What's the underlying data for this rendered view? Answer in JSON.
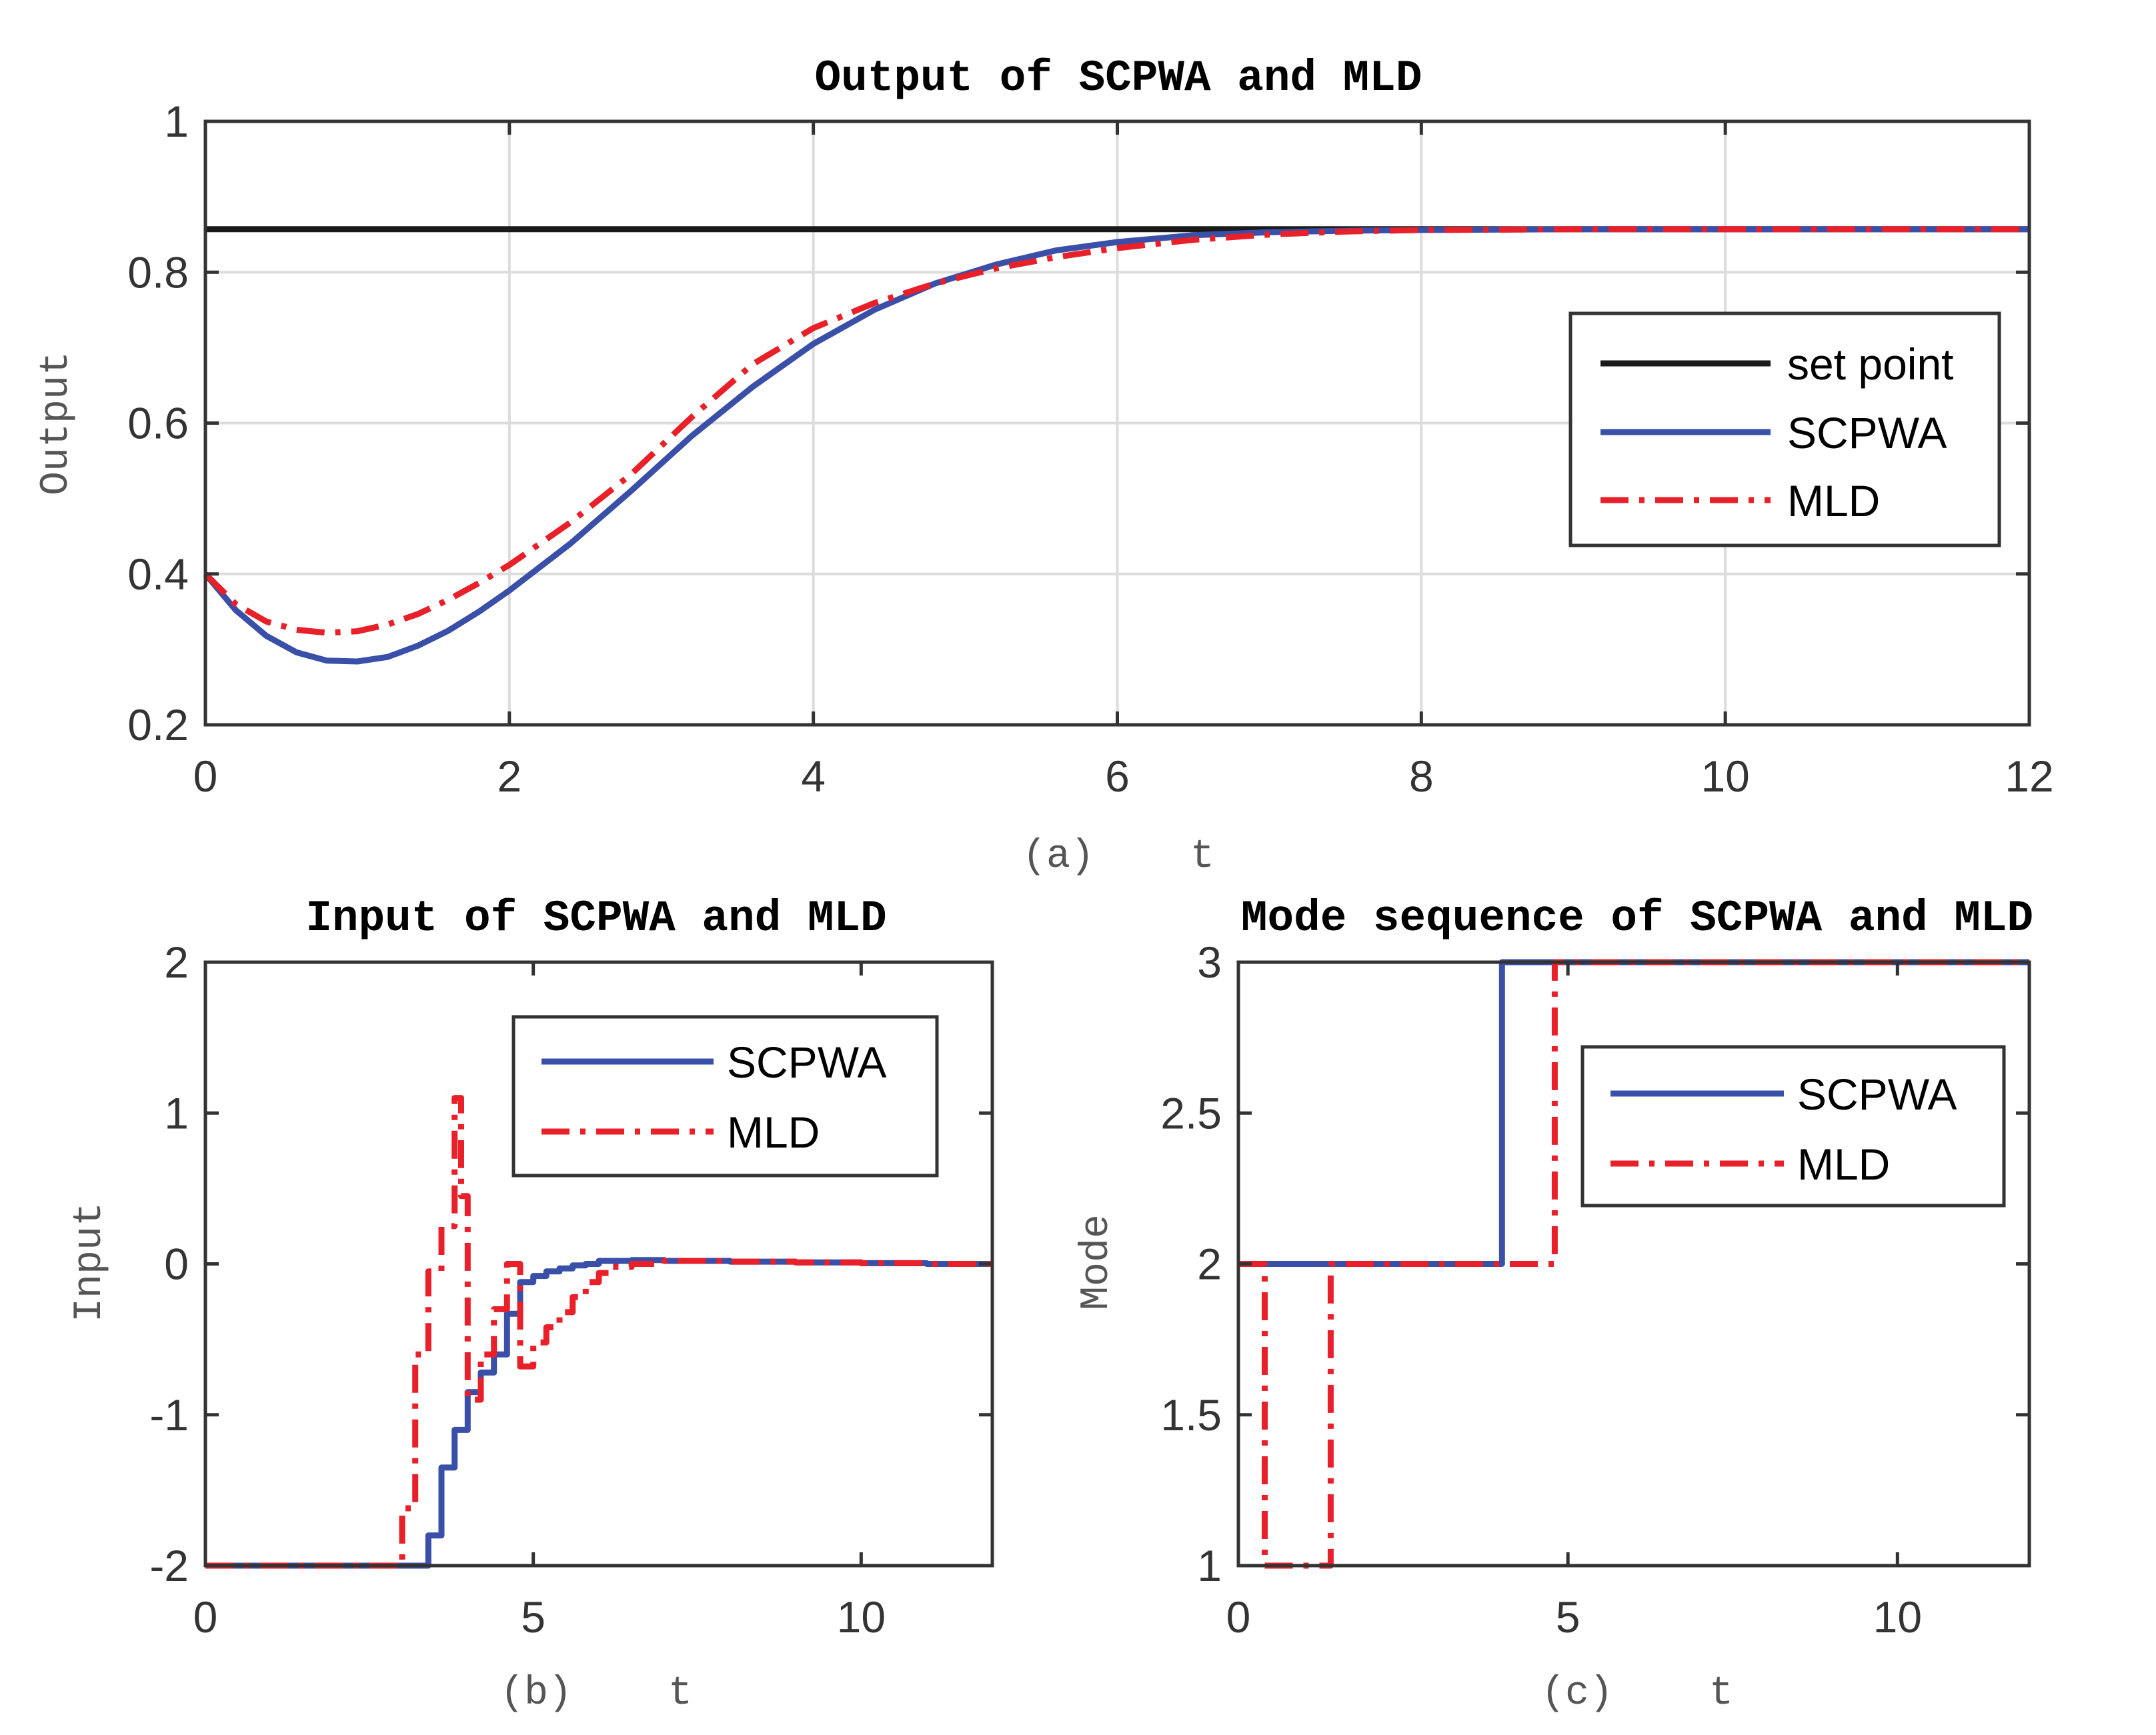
{
  "chart_data": [
    {
      "type": "line",
      "title": "Output of SCPWA and MLD",
      "xlabel": "(a)    t",
      "ylabel": "Output",
      "xlim": [
        0,
        12
      ],
      "ylim": [
        0.2,
        1
      ],
      "xticks": [
        0,
        2,
        4,
        6,
        8,
        10,
        12
      ],
      "xticklabels": [
        "0",
        "2",
        "4",
        "6",
        "8",
        "10",
        "12"
      ],
      "yticks": [
        0.2,
        0.4,
        0.6,
        0.8,
        1
      ],
      "yticklabels": [
        "0.2",
        "0.4",
        "0.6",
        "0.8",
        "1"
      ],
      "grid": true,
      "legend_position": "right",
      "series": [
        {
          "name": "set point",
          "color": "#1a1a1a",
          "dash": "solid",
          "x": [
            0,
            12
          ],
          "y": [
            0.857,
            0.857
          ]
        },
        {
          "name": "SCPWA",
          "color": "#3a4fa8",
          "dash": "solid",
          "x": [
            0,
            0.2,
            0.4,
            0.6,
            0.8,
            1.0,
            1.2,
            1.4,
            1.6,
            1.8,
            2.0,
            2.4,
            2.8,
            3.2,
            3.6,
            4.0,
            4.4,
            4.8,
            5.2,
            5.6,
            6.0,
            6.5,
            7.0,
            7.5,
            8.0,
            9.0,
            10.0,
            11.0,
            12.0
          ],
          "y": [
            0.4,
            0.352,
            0.318,
            0.296,
            0.285,
            0.284,
            0.29,
            0.305,
            0.325,
            0.35,
            0.378,
            0.44,
            0.51,
            0.583,
            0.648,
            0.705,
            0.75,
            0.785,
            0.81,
            0.829,
            0.84,
            0.849,
            0.853,
            0.855,
            0.856,
            0.857,
            0.857,
            0.857,
            0.857
          ]
        },
        {
          "name": "MLD",
          "color": "#e8202a",
          "dash": "dashdot",
          "x": [
            0,
            0.2,
            0.4,
            0.6,
            0.8,
            1.0,
            1.2,
            1.4,
            1.6,
            1.8,
            2.0,
            2.4,
            2.8,
            3.2,
            3.6,
            4.0,
            4.4,
            4.8,
            5.2,
            5.6,
            6.0,
            6.5,
            7.0,
            7.5,
            8.0,
            9.0,
            10.0,
            11.0,
            12.0
          ],
          "y": [
            0.4,
            0.36,
            0.337,
            0.326,
            0.322,
            0.324,
            0.333,
            0.347,
            0.366,
            0.388,
            0.412,
            0.468,
            0.532,
            0.608,
            0.678,
            0.726,
            0.759,
            0.785,
            0.805,
            0.82,
            0.832,
            0.843,
            0.85,
            0.854,
            0.856,
            0.857,
            0.857,
            0.857,
            0.857
          ]
        }
      ]
    },
    {
      "type": "line",
      "title": "Input of SCPWA and MLD",
      "xlabel": "(b)    t",
      "ylabel": "Input",
      "xlim": [
        0,
        12
      ],
      "ylim": [
        -2,
        2
      ],
      "xticks": [
        0,
        5,
        10
      ],
      "xticklabels": [
        "0",
        "5",
        "10"
      ],
      "yticks": [
        -2,
        -1,
        0,
        1,
        2
      ],
      "yticklabels": [
        "-2",
        "-1",
        "0",
        "1",
        "2"
      ],
      "grid": false,
      "legend_position": "top-right",
      "series": [
        {
          "name": "SCPWA",
          "color": "#3a4fa8",
          "dash": "solid",
          "step": true,
          "x": [
            0,
            3.4,
            3.6,
            3.8,
            4.0,
            4.2,
            4.4,
            4.6,
            4.8,
            5.0,
            5.2,
            5.4,
            5.6,
            5.8,
            6.0,
            6.5,
            7.0,
            8.0,
            9.0,
            10.0,
            11.0,
            12.0
          ],
          "y": [
            -2,
            -1.8,
            -1.35,
            -1.1,
            -0.85,
            -0.72,
            -0.6,
            -0.33,
            -0.12,
            -0.08,
            -0.05,
            -0.03,
            -0.01,
            0.0,
            0.02,
            0.025,
            0.02,
            0.015,
            0.01,
            0.005,
            0.0,
            0.0
          ]
        },
        {
          "name": "MLD",
          "color": "#e8202a",
          "dash": "dashdot",
          "step": true,
          "x": [
            0,
            3.0,
            3.2,
            3.4,
            3.6,
            3.8,
            3.9,
            4.0,
            4.2,
            4.4,
            4.6,
            4.8,
            5.0,
            5.2,
            5.4,
            5.6,
            5.8,
            6.0,
            6.2,
            6.5,
            7.0,
            8.0,
            9.0,
            10.0,
            11.0,
            12.0
          ],
          "y": [
            -2,
            -1.62,
            -0.6,
            -0.05,
            0.25,
            1.1,
            0.45,
            -0.9,
            -0.6,
            -0.3,
            0.0,
            -0.68,
            -0.52,
            -0.42,
            -0.32,
            -0.22,
            -0.12,
            -0.06,
            -0.02,
            0.0,
            0.02,
            0.015,
            0.01,
            0.005,
            0.0,
            0.0
          ]
        }
      ]
    },
    {
      "type": "line",
      "title": "Mode sequence of SCPWA and MLD",
      "xlabel": "(c)    t",
      "ylabel": "Mode",
      "xlim": [
        0,
        12
      ],
      "ylim": [
        1,
        3
      ],
      "xticks": [
        0,
        5,
        10
      ],
      "xticklabels": [
        "0",
        "5",
        "10"
      ],
      "yticks": [
        1,
        1.5,
        2,
        2.5,
        3
      ],
      "yticklabels": [
        "1",
        "1.5",
        "2",
        "2.5",
        "3"
      ],
      "grid": false,
      "legend_position": "right",
      "series": [
        {
          "name": "SCPWA",
          "color": "#3a4fa8",
          "dash": "solid",
          "step": true,
          "x": [
            0,
            4.0,
            12.0
          ],
          "y": [
            2,
            3,
            3
          ]
        },
        {
          "name": "MLD",
          "color": "#e8202a",
          "dash": "dashdot",
          "step": true,
          "x": [
            0,
            0.4,
            1.4,
            4.8,
            12.0
          ],
          "y": [
            2,
            1,
            2,
            3,
            3
          ]
        }
      ]
    }
  ]
}
